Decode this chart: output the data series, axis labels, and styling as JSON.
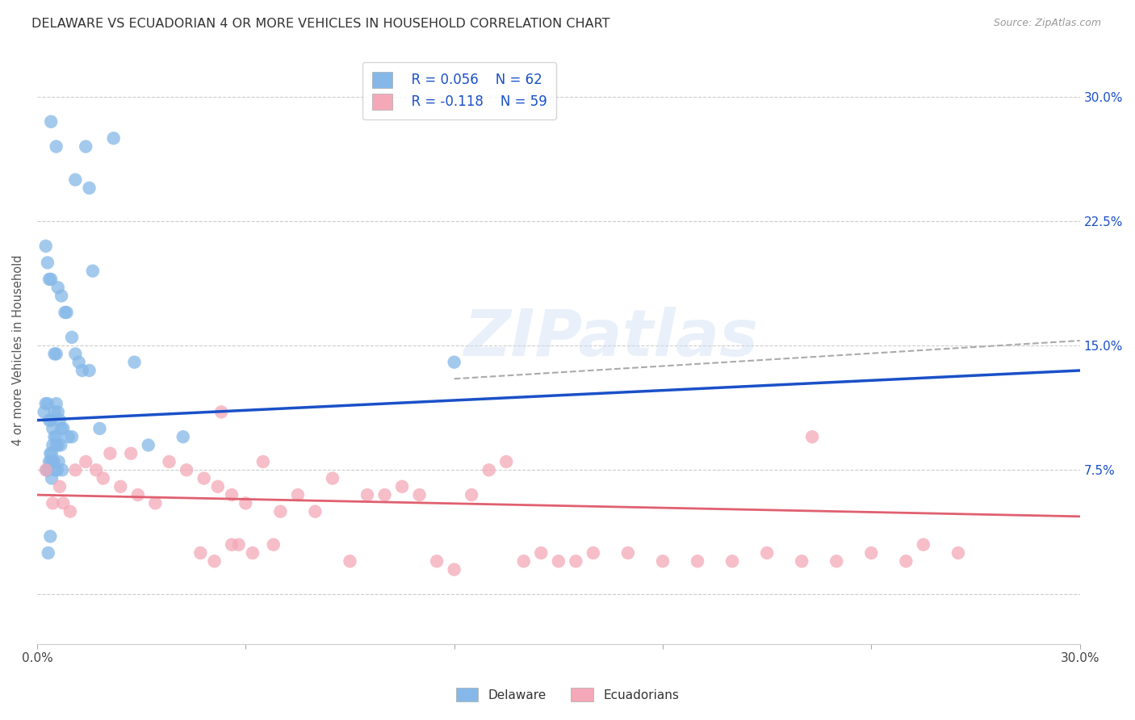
{
  "title": "DELAWARE VS ECUADORIAN 4 OR MORE VEHICLES IN HOUSEHOLD CORRELATION CHART",
  "source": "Source: ZipAtlas.com",
  "ylabel": "4 or more Vehicles in Household",
  "xlim": [
    0.0,
    30.0
  ],
  "ylim": [
    -3.0,
    32.5
  ],
  "ytick_vals": [
    0.0,
    7.5,
    15.0,
    22.5,
    30.0
  ],
  "ytick_labels_right": [
    "",
    "7.5%",
    "15.0%",
    "22.5%",
    "30.0%"
  ],
  "xtick_vals": [
    0,
    6,
    12,
    18,
    24,
    30
  ],
  "xtick_labels": [
    "0.0%",
    "",
    "",
    "",
    "",
    "30.0%"
  ],
  "grid_color": "#cccccc",
  "bg_color": "#ffffff",
  "delaware_color": "#85b8e8",
  "ecuadorian_color": "#f4a8b8",
  "delaware_line_color": "#1a50c8",
  "ecuadorian_line_color": "#e06070",
  "legend_r_delaware": "R = 0.056",
  "legend_n_delaware": "N = 62",
  "legend_r_ecuadorian": "R = -0.118",
  "legend_n_ecuadorian": "N = 59",
  "watermark": "ZIPatlas",
  "del_trend_x0": 0.0,
  "del_trend_x1": 30.0,
  "del_trend_y0": 10.5,
  "del_trend_y1": 13.5,
  "ecu_trend_x0": 0.0,
  "ecu_trend_x1": 30.0,
  "ecu_trend_y0": 6.0,
  "ecu_trend_y1": 4.7,
  "dash_x0": 12.0,
  "dash_x1": 30.0,
  "dash_y0": 13.0,
  "dash_y1": 15.3,
  "delaware_x": [
    0.4,
    0.55,
    1.4,
    2.2,
    1.1,
    1.5,
    0.25,
    0.3,
    0.35,
    0.4,
    0.5,
    0.55,
    0.6,
    0.7,
    0.8,
    0.85,
    1.0,
    1.1,
    1.2,
    1.3,
    1.5,
    1.6,
    0.2,
    0.25,
    0.3,
    0.35,
    0.4,
    0.45,
    0.5,
    0.55,
    0.6,
    0.65,
    0.7,
    0.75,
    0.9,
    1.0,
    1.8,
    0.45,
    0.5,
    0.55,
    0.6,
    0.4,
    0.35,
    0.3,
    0.38,
    0.42,
    0.48,
    0.52,
    0.58,
    0.62,
    0.72,
    3.2,
    4.2,
    0.42,
    0.38,
    0.28,
    2.8,
    0.45,
    0.55,
    12.0,
    0.32,
    0.68
  ],
  "delaware_y": [
    28.5,
    27.0,
    27.0,
    27.5,
    25.0,
    24.5,
    21.0,
    20.0,
    19.0,
    19.0,
    14.5,
    14.5,
    18.5,
    18.0,
    17.0,
    17.0,
    15.5,
    14.5,
    14.0,
    13.5,
    13.5,
    19.5,
    11.0,
    11.5,
    11.5,
    10.5,
    10.5,
    10.0,
    11.0,
    11.5,
    11.0,
    10.5,
    10.0,
    10.0,
    9.5,
    9.5,
    10.0,
    9.0,
    9.5,
    9.5,
    9.0,
    8.0,
    8.0,
    7.5,
    8.5,
    8.5,
    8.0,
    7.5,
    7.5,
    8.0,
    7.5,
    9.0,
    9.5,
    7.0,
    3.5,
    7.5,
    14.0,
    8.0,
    9.0,
    14.0,
    2.5,
    9.0
  ],
  "ecuadorian_x": [
    0.25,
    0.45,
    0.65,
    0.75,
    0.95,
    1.1,
    1.4,
    1.7,
    1.9,
    2.1,
    2.4,
    2.7,
    2.9,
    3.4,
    3.8,
    4.3,
    4.8,
    5.2,
    5.6,
    6.0,
    6.5,
    7.0,
    7.5,
    8.0,
    8.5,
    9.0,
    9.5,
    10.0,
    10.5,
    11.0,
    11.5,
    12.0,
    12.5,
    13.0,
    13.5,
    14.0,
    14.5,
    15.0,
    15.5,
    16.0,
    17.0,
    18.0,
    19.0,
    20.0,
    21.0,
    22.0,
    23.0,
    24.0,
    25.0,
    25.5,
    22.3,
    5.3,
    5.8,
    6.2,
    6.8,
    4.7,
    5.1,
    5.6,
    26.5
  ],
  "ecuadorian_y": [
    7.5,
    5.5,
    6.5,
    5.5,
    5.0,
    7.5,
    8.0,
    7.5,
    7.0,
    8.5,
    6.5,
    8.5,
    6.0,
    5.5,
    8.0,
    7.5,
    7.0,
    6.5,
    6.0,
    5.5,
    8.0,
    5.0,
    6.0,
    5.0,
    7.0,
    2.0,
    6.0,
    6.0,
    6.5,
    6.0,
    2.0,
    1.5,
    6.0,
    7.5,
    8.0,
    2.0,
    2.5,
    2.0,
    2.0,
    2.5,
    2.5,
    2.0,
    2.0,
    2.0,
    2.5,
    2.0,
    2.0,
    2.5,
    2.0,
    3.0,
    9.5,
    11.0,
    3.0,
    2.5,
    3.0,
    2.5,
    2.0,
    3.0,
    2.5
  ]
}
